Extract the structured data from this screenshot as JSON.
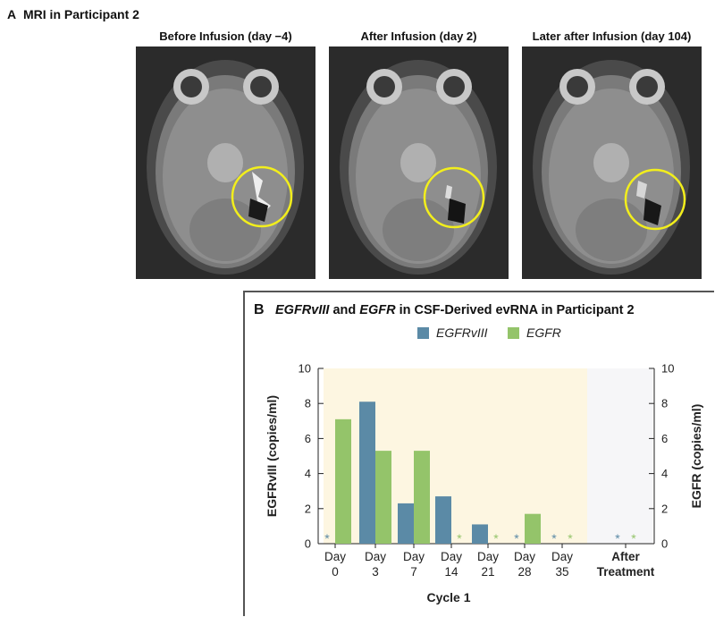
{
  "panel_a": {
    "letter": "A",
    "title": "MRI in Participant 2",
    "images": [
      {
        "caption": "Before Infusion (day −4)"
      },
      {
        "caption": "After Infusion (day 2)"
      },
      {
        "caption": "Later after Infusion (day 104)"
      }
    ],
    "circle_color": "#f2ee1c"
  },
  "panel_b": {
    "letter": "B",
    "title_parts": [
      "EGFRvIII",
      " and ",
      "EGFR",
      " in CSF-Derived evRNA in Participant 2"
    ]
  },
  "chart_data": {
    "type": "bar",
    "categories": [
      [
        "Day",
        "0"
      ],
      [
        "Day",
        "3"
      ],
      [
        "Day",
        "7"
      ],
      [
        "Day",
        "14"
      ],
      [
        "Day",
        "21"
      ],
      [
        "Day",
        "28"
      ],
      [
        "Day",
        "35"
      ],
      [
        "After",
        "Treatment"
      ]
    ],
    "series": [
      {
        "name": "EGFRvIII",
        "color": "#5b8aa6",
        "values": [
          0,
          8.1,
          2.3,
          2.7,
          1.1,
          0,
          0,
          0
        ],
        "undetected": [
          true,
          false,
          false,
          false,
          false,
          true,
          true,
          true
        ]
      },
      {
        "name": "EGFR",
        "color": "#94c46a",
        "values": [
          7.1,
          5.3,
          5.3,
          0,
          0,
          1.7,
          0,
          0
        ],
        "undetected": [
          false,
          false,
          false,
          true,
          true,
          false,
          true,
          true
        ]
      }
    ],
    "undetected_marker": "*",
    "ylabel_left": "EGFRvIII (copies/ml)",
    "ylabel_right": "EGFR (copies/ml)",
    "xlabel": "Cycle 1",
    "ylim": [
      0,
      10
    ],
    "yticks": [
      0,
      2,
      4,
      6,
      8,
      10
    ],
    "shading": [
      {
        "from_category": 0,
        "to_category": 6,
        "color": "#fdf6e1"
      },
      {
        "from_category": 7,
        "to_category": 7,
        "color": "#f6f6f8"
      }
    ],
    "legend_position": "top-center"
  }
}
